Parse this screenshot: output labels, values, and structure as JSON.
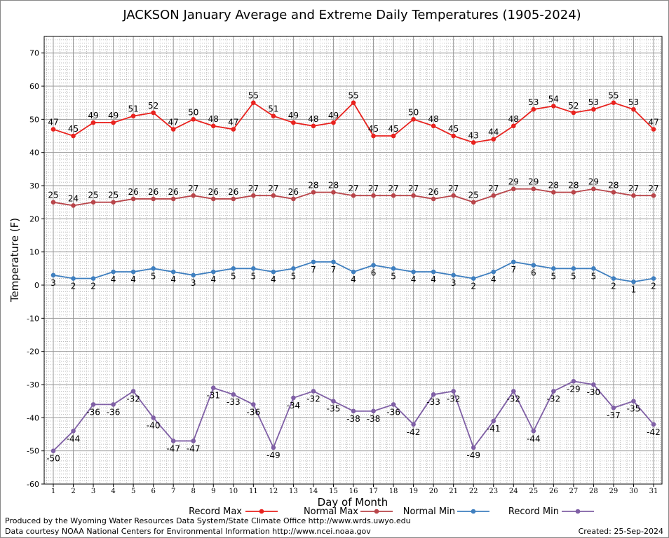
{
  "chart_data": {
    "type": "line",
    "title": "JACKSON January Average and Extreme Daily Temperatures (1905-2024)",
    "xlabel": "Day of Month",
    "ylabel": "Temperature (F)",
    "ylim": [
      -60,
      75
    ],
    "yticks": [
      -60,
      -50,
      -40,
      -30,
      -20,
      -10,
      0,
      10,
      20,
      30,
      40,
      50,
      60,
      70
    ],
    "xlim": [
      0.5,
      31.2
    ],
    "x": [
      1,
      2,
      3,
      4,
      5,
      6,
      7,
      8,
      9,
      10,
      11,
      12,
      13,
      14,
      15,
      16,
      17,
      18,
      19,
      20,
      21,
      22,
      23,
      24,
      25,
      26,
      27,
      28,
      29,
      30,
      31
    ],
    "grid": true,
    "legend_position": "bottom",
    "series": [
      {
        "name": "Record Max",
        "color": "#e8221e",
        "label_position": "above",
        "values": [
          47,
          45,
          49,
          49,
          51,
          52,
          47,
          50,
          48,
          47,
          55,
          51,
          49,
          48,
          49,
          55,
          45,
          45,
          50,
          48,
          45,
          43,
          44,
          48,
          53,
          54,
          52,
          53,
          55,
          53,
          47
        ]
      },
      {
        "name": "Normal Max",
        "color": "#b8454a",
        "label_position": "above",
        "values": [
          25,
          24,
          25,
          25,
          26,
          26,
          26,
          27,
          26,
          26,
          27,
          27,
          26,
          28,
          28,
          27,
          27,
          27,
          27,
          26,
          27,
          25,
          27,
          29,
          29,
          28,
          28,
          29,
          28,
          27,
          27
        ]
      },
      {
        "name": "Normal Min",
        "color": "#3f7fbf",
        "label_position": "below",
        "values": [
          3,
          2,
          2,
          4,
          4,
          5,
          4,
          3,
          4,
          5,
          5,
          4,
          5,
          7,
          7,
          4,
          6,
          5,
          4,
          4,
          3,
          2,
          4,
          7,
          6,
          5,
          5,
          5,
          2,
          1,
          2
        ]
      },
      {
        "name": "Record Min",
        "color": "#7f5fa5",
        "label_position": "below",
        "values": [
          -50,
          -44,
          -36,
          -36,
          -32,
          -40,
          -47,
          -47,
          -31,
          -33,
          -36,
          -49,
          -34,
          -32,
          -35,
          -38,
          -38,
          -36,
          -42,
          -33,
          -32,
          -49,
          -41,
          -32,
          -44,
          -32,
          -29,
          -30,
          -37,
          -35,
          -42
        ]
      }
    ]
  },
  "footer": {
    "credit_line_1": "Produced by the Wyoming Water Resources Data System/State Climate Office http://www.wrds.uwyo.edu",
    "credit_line_2": "Data courtesy NOAA National Centers for Environmental Information http://www.ncei.noaa.gov",
    "created": "Created:  25-Sep-2024"
  }
}
